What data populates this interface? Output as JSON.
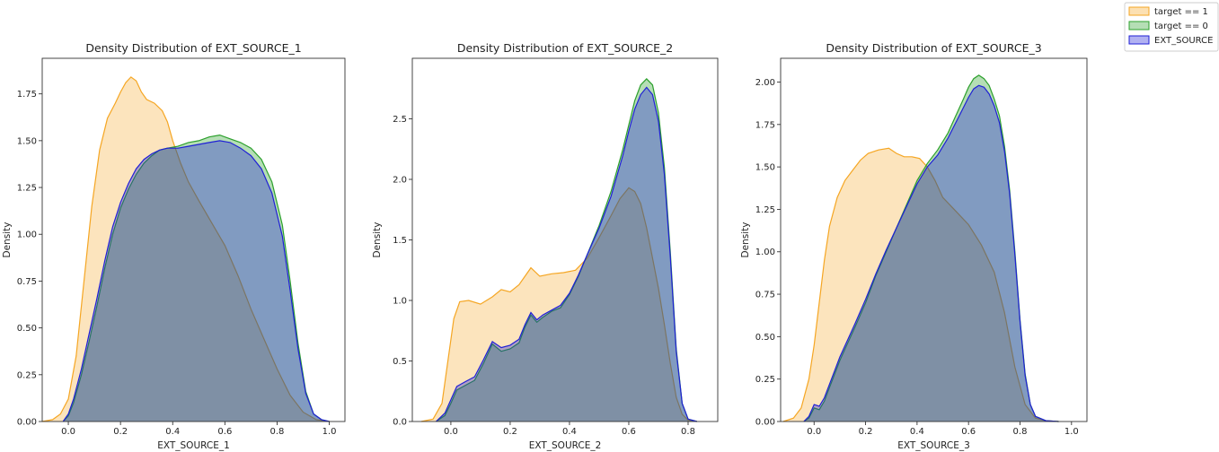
{
  "chart_data": [
    {
      "type": "area",
      "title": "Density Distribution of EXT_SOURCE_1",
      "xlabel": "EXT_SOURCE_1",
      "ylabel": "Density",
      "xlim": [
        -0.1,
        1.06
      ],
      "ylim": [
        0,
        1.94
      ],
      "xticks": [
        "0.0",
        "0.2",
        "0.4",
        "0.6",
        "0.8",
        "1.0"
      ],
      "yticks": [
        "0.00",
        "0.25",
        "0.50",
        "0.75",
        "1.00",
        "1.25",
        "1.50",
        "1.75"
      ],
      "grid": false,
      "series": [
        {
          "name": "target == 1",
          "color": "#f5a623",
          "x": [
            -0.1,
            -0.06,
            -0.03,
            0.0,
            0.03,
            0.06,
            0.09,
            0.12,
            0.15,
            0.18,
            0.2,
            0.22,
            0.24,
            0.26,
            0.28,
            0.3,
            0.33,
            0.36,
            0.38,
            0.4,
            0.43,
            0.46,
            0.5,
            0.55,
            0.6,
            0.65,
            0.7,
            0.75,
            0.8,
            0.85,
            0.9,
            0.95,
            1.0
          ],
          "y": [
            0.0,
            0.01,
            0.04,
            0.12,
            0.35,
            0.75,
            1.15,
            1.45,
            1.62,
            1.7,
            1.76,
            1.81,
            1.84,
            1.82,
            1.76,
            1.72,
            1.7,
            1.66,
            1.6,
            1.5,
            1.38,
            1.28,
            1.18,
            1.06,
            0.94,
            0.78,
            0.6,
            0.44,
            0.28,
            0.14,
            0.05,
            0.01,
            0.0
          ]
        },
        {
          "name": "target == 0",
          "color": "#2ca02c",
          "x": [
            -0.02,
            0.0,
            0.02,
            0.05,
            0.08,
            0.11,
            0.14,
            0.17,
            0.2,
            0.23,
            0.26,
            0.29,
            0.32,
            0.35,
            0.38,
            0.42,
            0.46,
            0.5,
            0.54,
            0.58,
            0.62,
            0.66,
            0.7,
            0.74,
            0.78,
            0.82,
            0.85,
            0.88,
            0.91,
            0.94,
            0.97,
            1.0
          ],
          "y": [
            0.0,
            0.03,
            0.1,
            0.25,
            0.43,
            0.62,
            0.82,
            1.0,
            1.14,
            1.24,
            1.32,
            1.38,
            1.42,
            1.45,
            1.46,
            1.47,
            1.49,
            1.5,
            1.52,
            1.53,
            1.51,
            1.49,
            1.46,
            1.4,
            1.28,
            1.05,
            0.75,
            0.42,
            0.16,
            0.04,
            0.01,
            0.0
          ]
        },
        {
          "name": "EXT_SOURCE",
          "color": "#1f1fd6",
          "x": [
            -0.02,
            0.0,
            0.02,
            0.05,
            0.08,
            0.11,
            0.14,
            0.17,
            0.2,
            0.23,
            0.26,
            0.29,
            0.32,
            0.35,
            0.38,
            0.42,
            0.46,
            0.5,
            0.54,
            0.58,
            0.62,
            0.66,
            0.7,
            0.74,
            0.78,
            0.82,
            0.85,
            0.88,
            0.91,
            0.94,
            0.97,
            1.0
          ],
          "y": [
            0.0,
            0.04,
            0.12,
            0.28,
            0.47,
            0.66,
            0.86,
            1.04,
            1.17,
            1.27,
            1.35,
            1.4,
            1.43,
            1.45,
            1.46,
            1.46,
            1.47,
            1.48,
            1.49,
            1.5,
            1.49,
            1.46,
            1.42,
            1.35,
            1.22,
            0.99,
            0.7,
            0.39,
            0.15,
            0.04,
            0.01,
            0.0
          ]
        }
      ]
    },
    {
      "type": "area",
      "title": "Density Distribution of EXT_SOURCE_2",
      "xlabel": "EXT_SOURCE_2",
      "ylabel": "Density",
      "xlim": [
        -0.13,
        0.9
      ],
      "ylim": [
        0,
        3.0
      ],
      "xticks": [
        "0.0",
        "0.2",
        "0.4",
        "0.6",
        "0.8"
      ],
      "yticks": [
        "0.0",
        "0.5",
        "1.0",
        "1.5",
        "2.0",
        "2.5"
      ],
      "grid": false,
      "series": [
        {
          "name": "target == 1",
          "color": "#f5a623",
          "x": [
            -0.1,
            -0.06,
            -0.03,
            -0.01,
            0.01,
            0.03,
            0.06,
            0.1,
            0.14,
            0.17,
            0.2,
            0.23,
            0.27,
            0.3,
            0.34,
            0.38,
            0.42,
            0.46,
            0.5,
            0.54,
            0.57,
            0.6,
            0.62,
            0.64,
            0.66,
            0.68,
            0.7,
            0.72,
            0.74,
            0.76,
            0.78,
            0.8,
            0.83
          ],
          "y": [
            0.0,
            0.02,
            0.15,
            0.5,
            0.85,
            0.99,
            1.0,
            0.97,
            1.03,
            1.09,
            1.07,
            1.13,
            1.27,
            1.2,
            1.22,
            1.23,
            1.25,
            1.35,
            1.52,
            1.7,
            1.84,
            1.93,
            1.9,
            1.8,
            1.6,
            1.35,
            1.1,
            0.8,
            0.48,
            0.2,
            0.06,
            0.01,
            0.0
          ]
        },
        {
          "name": "target == 0",
          "color": "#2ca02c",
          "x": [
            -0.05,
            -0.02,
            0.0,
            0.02,
            0.05,
            0.08,
            0.11,
            0.14,
            0.17,
            0.2,
            0.23,
            0.25,
            0.27,
            0.29,
            0.31,
            0.34,
            0.37,
            0.4,
            0.43,
            0.46,
            0.5,
            0.54,
            0.58,
            0.6,
            0.62,
            0.64,
            0.66,
            0.68,
            0.7,
            0.72,
            0.74,
            0.76,
            0.78,
            0.8,
            0.83
          ],
          "y": [
            0.0,
            0.05,
            0.15,
            0.26,
            0.3,
            0.34,
            0.48,
            0.64,
            0.58,
            0.6,
            0.65,
            0.78,
            0.88,
            0.82,
            0.86,
            0.91,
            0.94,
            1.05,
            1.2,
            1.38,
            1.62,
            1.9,
            2.25,
            2.45,
            2.65,
            2.78,
            2.83,
            2.78,
            2.55,
            2.1,
            1.4,
            0.6,
            0.15,
            0.02,
            0.0
          ]
        },
        {
          "name": "EXT_SOURCE",
          "color": "#1f1fd6",
          "x": [
            -0.05,
            -0.02,
            0.0,
            0.02,
            0.05,
            0.08,
            0.11,
            0.14,
            0.17,
            0.2,
            0.23,
            0.25,
            0.27,
            0.29,
            0.31,
            0.34,
            0.37,
            0.4,
            0.43,
            0.46,
            0.5,
            0.54,
            0.58,
            0.6,
            0.62,
            0.64,
            0.66,
            0.68,
            0.7,
            0.72,
            0.74,
            0.76,
            0.78,
            0.8,
            0.83
          ],
          "y": [
            0.0,
            0.07,
            0.18,
            0.29,
            0.33,
            0.37,
            0.51,
            0.66,
            0.61,
            0.63,
            0.68,
            0.8,
            0.9,
            0.84,
            0.88,
            0.92,
            0.96,
            1.06,
            1.21,
            1.38,
            1.6,
            1.86,
            2.2,
            2.4,
            2.58,
            2.7,
            2.76,
            2.7,
            2.48,
            2.04,
            1.36,
            0.58,
            0.15,
            0.02,
            0.0
          ]
        }
      ]
    },
    {
      "type": "area",
      "title": "Density Distribution of EXT_SOURCE_3",
      "xlabel": "EXT_SOURCE_3",
      "ylabel": "Density",
      "xlim": [
        -0.13,
        1.06
      ],
      "ylim": [
        0,
        2.14
      ],
      "xticks": [
        "0.0",
        "0.2",
        "0.4",
        "0.6",
        "0.8",
        "1.0"
      ],
      "yticks": [
        "0.00",
        "0.25",
        "0.50",
        "0.75",
        "1.00",
        "1.25",
        "1.50",
        "1.75",
        "2.00"
      ],
      "grid": false,
      "series": [
        {
          "name": "target == 1",
          "color": "#f5a623",
          "x": [
            -0.12,
            -0.08,
            -0.05,
            -0.02,
            0.0,
            0.02,
            0.04,
            0.06,
            0.09,
            0.12,
            0.15,
            0.18,
            0.21,
            0.25,
            0.29,
            0.32,
            0.35,
            0.38,
            0.41,
            0.44,
            0.47,
            0.5,
            0.55,
            0.6,
            0.65,
            0.7,
            0.74,
            0.78,
            0.82,
            0.86,
            0.9,
            0.95
          ],
          "y": [
            0.0,
            0.02,
            0.08,
            0.25,
            0.45,
            0.7,
            0.95,
            1.15,
            1.32,
            1.42,
            1.48,
            1.54,
            1.58,
            1.6,
            1.61,
            1.58,
            1.56,
            1.56,
            1.55,
            1.5,
            1.42,
            1.32,
            1.24,
            1.16,
            1.04,
            0.88,
            0.64,
            0.32,
            0.1,
            0.02,
            0.005,
            0.0
          ]
        },
        {
          "name": "target == 0",
          "color": "#2ca02c",
          "x": [
            -0.04,
            -0.02,
            0.0,
            0.02,
            0.04,
            0.06,
            0.08,
            0.1,
            0.13,
            0.16,
            0.2,
            0.24,
            0.28,
            0.32,
            0.36,
            0.4,
            0.44,
            0.48,
            0.52,
            0.55,
            0.58,
            0.6,
            0.62,
            0.64,
            0.66,
            0.68,
            0.7,
            0.72,
            0.74,
            0.76,
            0.78,
            0.8,
            0.82,
            0.84,
            0.86,
            0.9,
            0.95
          ],
          "y": [
            0.0,
            0.02,
            0.08,
            0.07,
            0.12,
            0.2,
            0.28,
            0.36,
            0.46,
            0.56,
            0.7,
            0.86,
            1.0,
            1.14,
            1.28,
            1.42,
            1.52,
            1.6,
            1.7,
            1.8,
            1.9,
            1.97,
            2.02,
            2.04,
            2.02,
            1.98,
            1.9,
            1.8,
            1.62,
            1.36,
            1.0,
            0.6,
            0.28,
            0.1,
            0.03,
            0.005,
            0.0
          ]
        },
        {
          "name": "EXT_SOURCE",
          "color": "#1f1fd6",
          "x": [
            -0.04,
            -0.02,
            0.0,
            0.02,
            0.04,
            0.06,
            0.08,
            0.1,
            0.13,
            0.16,
            0.2,
            0.24,
            0.28,
            0.32,
            0.36,
            0.4,
            0.44,
            0.48,
            0.52,
            0.55,
            0.58,
            0.6,
            0.62,
            0.64,
            0.66,
            0.68,
            0.7,
            0.72,
            0.74,
            0.76,
            0.78,
            0.8,
            0.82,
            0.84,
            0.86,
            0.9,
            0.95
          ],
          "y": [
            0.0,
            0.03,
            0.1,
            0.09,
            0.14,
            0.22,
            0.3,
            0.38,
            0.48,
            0.58,
            0.72,
            0.87,
            1.01,
            1.14,
            1.27,
            1.4,
            1.5,
            1.57,
            1.67,
            1.76,
            1.85,
            1.91,
            1.96,
            1.98,
            1.97,
            1.93,
            1.86,
            1.76,
            1.59,
            1.34,
            0.98,
            0.59,
            0.27,
            0.1,
            0.03,
            0.005,
            0.0
          ]
        }
      ]
    }
  ],
  "legend": {
    "placement": "top-right",
    "entries": [
      {
        "label": "target == 1",
        "color": "#f5a623"
      },
      {
        "label": "target == 0",
        "color": "#2ca02c"
      },
      {
        "label": "EXT_SOURCE",
        "color": "#1f1fd6"
      }
    ]
  }
}
